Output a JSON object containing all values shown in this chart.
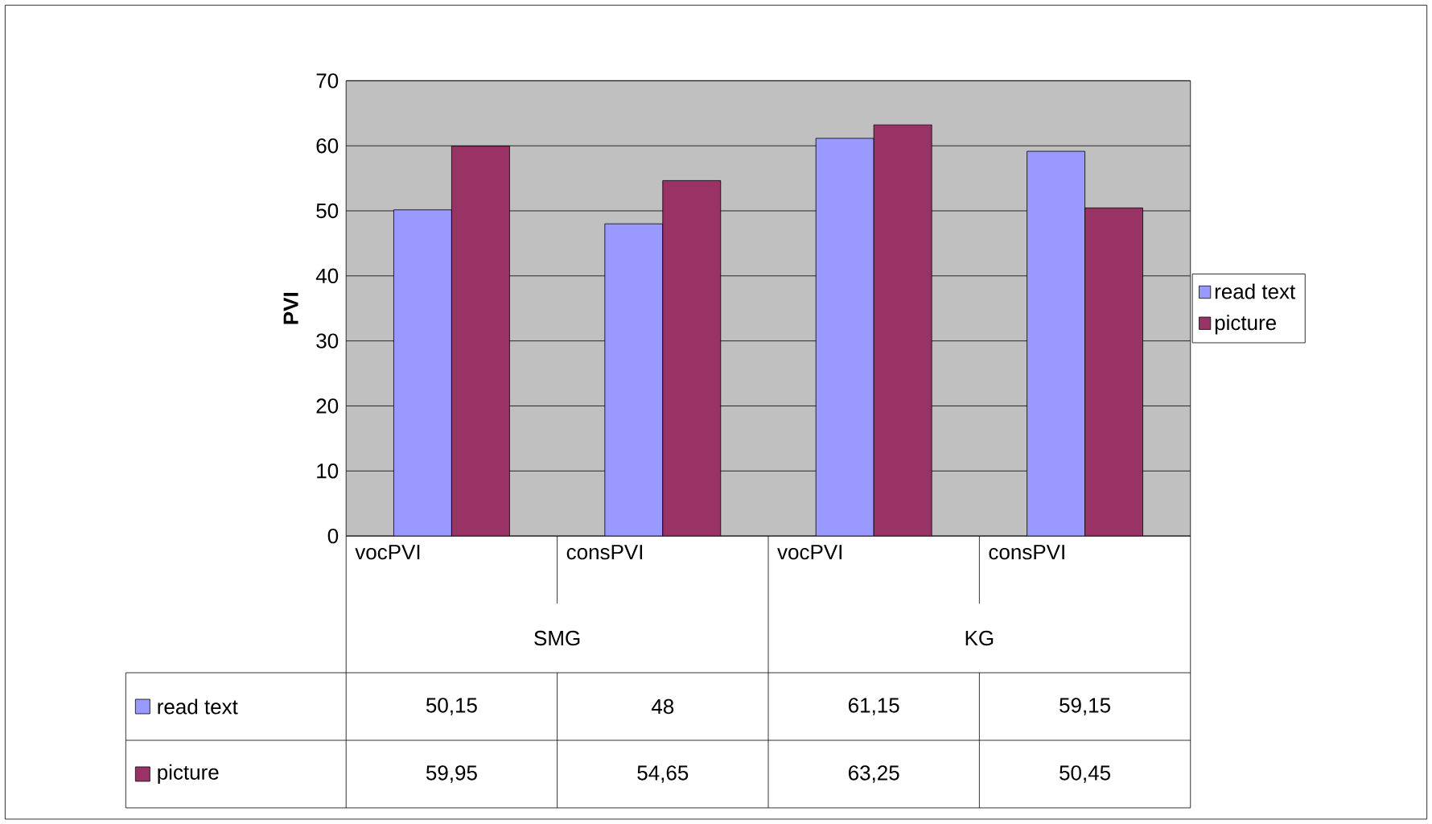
{
  "chart_data": {
    "type": "bar",
    "ylabel": "PVI",
    "categories": [
      "vocPVI",
      "consPVI",
      "vocPVI",
      "consPVI"
    ],
    "annotations": [
      "SMG",
      "KG"
    ],
    "series": [
      {
        "name": "read text",
        "color": "#9999ff",
        "values": [
          50.15,
          48,
          61.15,
          59.15
        ],
        "value_labels": [
          "50,15",
          "48",
          "61,15",
          "59,15"
        ]
      },
      {
        "name": "picture",
        "color": "#993366",
        "values": [
          59.95,
          54.65,
          63.25,
          50.45
        ],
        "value_labels": [
          "59,95",
          "54,65",
          "63,25",
          "50,45"
        ]
      }
    ],
    "ylim": [
      0,
      70
    ],
    "yticks": [
      0,
      10,
      20,
      30,
      40,
      50,
      60,
      70
    ],
    "grid": "y",
    "legend": "right"
  }
}
